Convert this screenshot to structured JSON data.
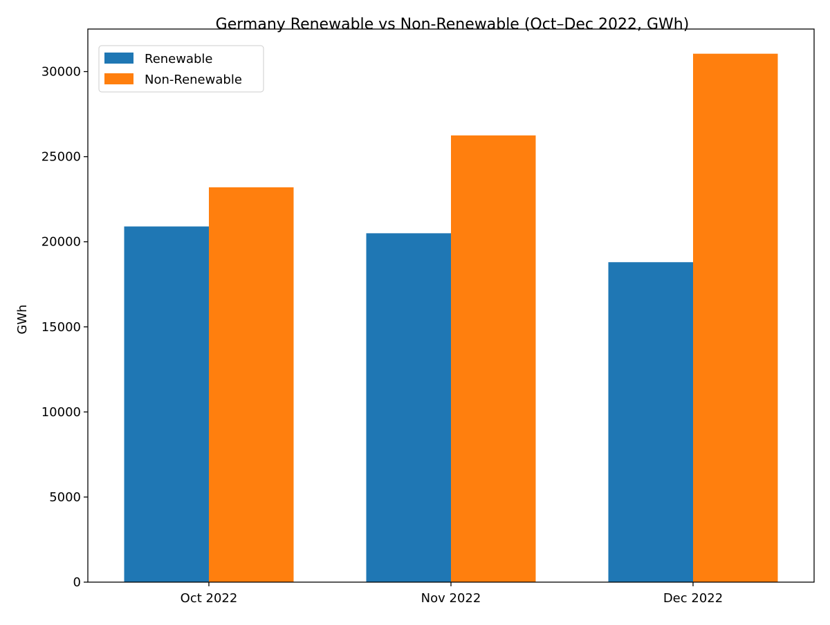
{
  "chart_data": {
    "type": "bar",
    "title": "Germany Renewable vs Non-Renewable (Oct–Dec 2022, GWh)",
    "xlabel": "",
    "ylabel": "GWh",
    "categories": [
      "Oct 2022",
      "Nov 2022",
      "Dec 2022"
    ],
    "series": [
      {
        "name": "Renewable",
        "color": "#1f77b4",
        "values": [
          20900,
          20500,
          18800
        ]
      },
      {
        "name": "Non-Renewable",
        "color": "#ff7f0e",
        "values": [
          23200,
          26250,
          31050
        ]
      }
    ],
    "ylim": [
      0,
      32500
    ],
    "yticks": [
      0,
      5000,
      10000,
      15000,
      20000,
      25000,
      30000
    ],
    "grid": false,
    "legend_position": "top-left"
  }
}
